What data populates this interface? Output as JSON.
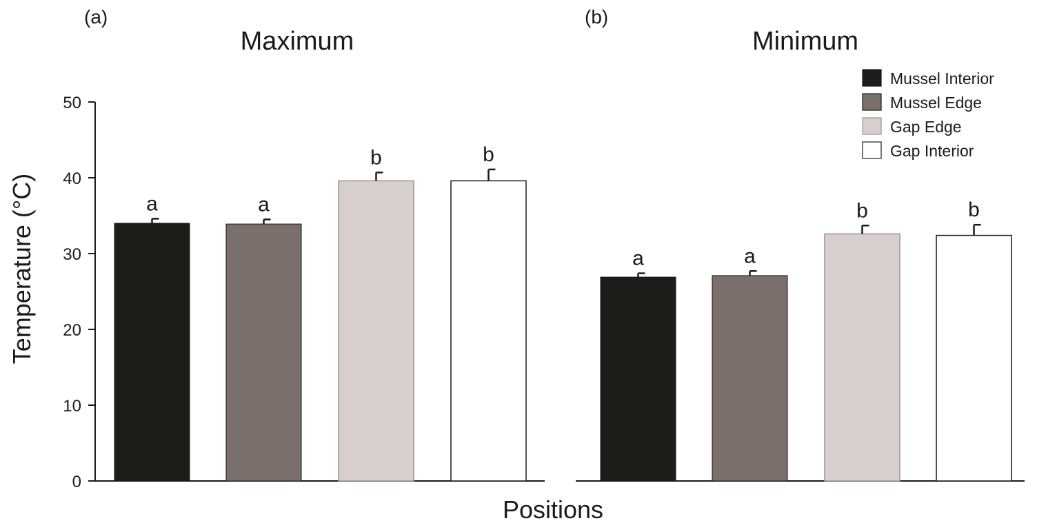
{
  "ylabel": "Temperature (°C)",
  "xlabel": "Positions",
  "legend": [
    {
      "label": "Mussel Interior",
      "color": "#1c1c18"
    },
    {
      "label": "Mussel Edge",
      "color": "#7a6f6b"
    },
    {
      "label": "Gap Edge",
      "color": "#d6cfcc"
    },
    {
      "label": "Gap Interior",
      "color": "#ffffff"
    }
  ],
  "chart_data": [
    {
      "type": "bar",
      "panel_label": "(a)",
      "title": "Maximum",
      "categories": [
        "Mussel Interior",
        "Mussel Edge",
        "Gap Edge",
        "Gap Interior"
      ],
      "values": [
        34.0,
        33.9,
        39.6,
        39.6
      ],
      "errors": [
        0.6,
        0.6,
        1.1,
        1.5
      ],
      "significance_labels": [
        "a",
        "a",
        "b",
        "b"
      ],
      "ylim": [
        0,
        50
      ],
      "yticks": [
        0,
        10,
        20,
        30,
        40,
        50
      ],
      "grid": false
    },
    {
      "type": "bar",
      "panel_label": "(b)",
      "title": "Minimum",
      "categories": [
        "Mussel Interior",
        "Mussel Edge",
        "Gap Edge",
        "Gap Interior"
      ],
      "values": [
        26.9,
        27.1,
        32.6,
        32.4
      ],
      "errors": [
        0.5,
        0.6,
        1.1,
        1.4
      ],
      "significance_labels": [
        "a",
        "a",
        "b",
        "b"
      ],
      "ylim": [
        0,
        50
      ],
      "grid": false
    }
  ]
}
